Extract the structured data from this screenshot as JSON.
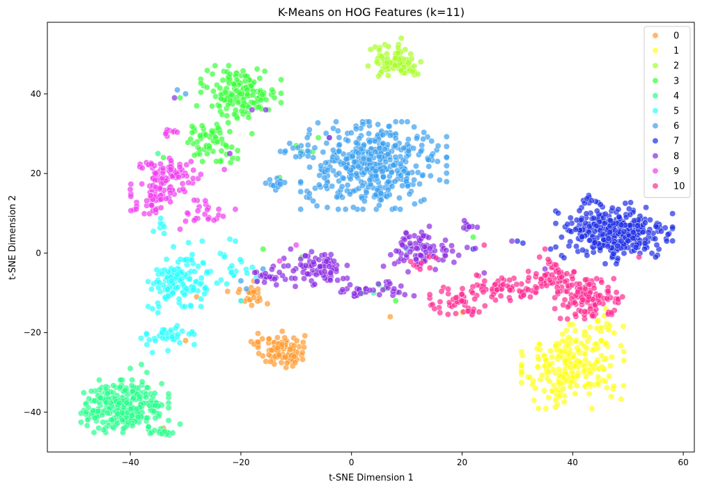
{
  "chart_data": {
    "type": "scatter",
    "title": "K-Means on HOG Features (k=11)",
    "xlabel": "t-SNE Dimension 1",
    "ylabel": "t-SNE Dimension 2",
    "xlim": [
      -55,
      62
    ],
    "ylim": [
      -50,
      58
    ],
    "xticks": [
      -40,
      -20,
      0,
      20,
      40,
      60
    ],
    "yticks": [
      -40,
      -20,
      0,
      20,
      40
    ],
    "grid": false,
    "legend": {
      "placement": "top-right"
    },
    "point_opacity": 0.7,
    "series": [
      {
        "name": "0",
        "color": "#ff9a2e",
        "clusters": [
          {
            "cx": -12.5,
            "cy": -24.5,
            "sx": 2.0,
            "sy": 2.2,
            "n": 90
          },
          {
            "cx": -18.5,
            "cy": -10.0,
            "sx": 1.8,
            "sy": 1.5,
            "n": 25
          },
          {
            "cx": -17.0,
            "cy": -22.5,
            "sx": 1.0,
            "sy": 0.6,
            "n": 6
          }
        ],
        "points": [
          [
            -28,
            -11
          ],
          [
            -30,
            -22
          ],
          [
            -34,
            -44
          ],
          [
            7,
            -16
          ]
        ]
      },
      {
        "name": "1",
        "color": "#ffff1a",
        "clusters": [
          {
            "cx": 40.0,
            "cy": -28.5,
            "sx": 4.2,
            "sy": 4.8,
            "n": 230
          },
          {
            "cx": 44.5,
            "cy": -19.0,
            "sx": 2.5,
            "sy": 1.8,
            "n": 20
          }
        ],
        "points": [
          [
            20,
            -15
          ],
          [
            33,
            -37
          ],
          [
            46,
            -14
          ]
        ]
      },
      {
        "name": "2",
        "color": "#a6ff24",
        "clusters": [
          {
            "cx": 8.5,
            "cy": 48.0,
            "sx": 2.3,
            "sy": 2.0,
            "n": 80
          }
        ],
        "points": [
          [
            9,
            54
          ],
          [
            3,
            47
          ],
          [
            12,
            45
          ],
          [
            5,
            51
          ]
        ]
      },
      {
        "name": "3",
        "color": "#38ff38",
        "clusters": [
          {
            "cx": -20.0,
            "cy": 40.5,
            "sx": 3.3,
            "sy": 3.0,
            "n": 150
          },
          {
            "cx": -25.5,
            "cy": 27.5,
            "sx": 2.3,
            "sy": 2.4,
            "n": 60
          }
        ],
        "points": [
          [
            -28,
            37
          ],
          [
            -27,
            32
          ],
          [
            -18,
            30
          ],
          [
            -15,
            36
          ],
          [
            -31,
            39
          ],
          [
            -22,
            45
          ],
          [
            -9,
            25.5
          ],
          [
            -7,
            25.5
          ],
          [
            -6,
            29
          ],
          [
            -10,
            27
          ],
          [
            -13,
            19
          ],
          [
            -16,
            1
          ],
          [
            6,
            -9
          ],
          [
            8,
            -12
          ],
          [
            22,
            4
          ],
          [
            -9,
            -1
          ],
          [
            -34,
            24
          ]
        ]
      },
      {
        "name": "4",
        "color": "#26ff8a",
        "clusters": [
          {
            "cx": -41.0,
            "cy": -38.5,
            "sx": 3.6,
            "sy": 3.0,
            "n": 300
          },
          {
            "cx": -34.0,
            "cy": -45.0,
            "sx": 1.2,
            "sy": 0.5,
            "n": 15
          }
        ],
        "points": [
          [
            -48,
            -40
          ],
          [
            -31,
            -43
          ],
          [
            -40,
            -29
          ],
          [
            -38,
            -28
          ],
          [
            -37,
            -30
          ],
          [
            4,
            -10
          ],
          [
            5,
            -8
          ],
          [
            2,
            -10
          ],
          [
            -35,
            25
          ]
        ]
      },
      {
        "name": "5",
        "color": "#26ffff",
        "clusters": [
          {
            "cx": -31.5,
            "cy": -7.5,
            "sx": 2.4,
            "sy": 2.7,
            "n": 120
          },
          {
            "cx": -33.0,
            "cy": -21.0,
            "sx": 2.3,
            "sy": 1.6,
            "n": 35
          },
          {
            "cx": -24.5,
            "cy": -3.5,
            "sx": 3.5,
            "sy": 3.0,
            "n": 30
          },
          {
            "cx": -34.5,
            "cy": 7.5,
            "sx": 0.6,
            "sy": 1.2,
            "n": 7
          }
        ],
        "points": [
          [
            -21,
            3
          ],
          [
            -22,
            3.5
          ],
          [
            -27,
            3
          ],
          [
            -36,
            -25
          ],
          [
            -37,
            -23
          ],
          [
            -35,
            -15
          ],
          [
            -36,
            -14
          ],
          [
            -20,
            -12
          ],
          [
            -23,
            -1
          ]
        ]
      },
      {
        "name": "6",
        "color": "#3aa0f0",
        "clusters": [
          {
            "cx": 4.0,
            "cy": 22.0,
            "sx": 6.0,
            "sy": 5.0,
            "n": 420
          },
          {
            "cx": -13.5,
            "cy": 17.5,
            "sx": 1.0,
            "sy": 0.8,
            "n": 14
          },
          {
            "cx": -10.0,
            "cy": 26.0,
            "sx": 1.3,
            "sy": 1.0,
            "n": 10
          }
        ],
        "points": [
          [
            -8,
            29
          ],
          [
            -4,
            29
          ],
          [
            5,
            12
          ],
          [
            -17,
            -7
          ],
          [
            -19,
            -9
          ],
          [
            -20,
            -7
          ],
          [
            -16,
            -4
          ],
          [
            -30,
            40
          ],
          [
            -31.5,
            41
          ],
          [
            10,
            1
          ]
        ]
      },
      {
        "name": "7",
        "color": "#1e2de6",
        "clusters": [
          {
            "cx": 47.5,
            "cy": 5.0,
            "sx": 4.8,
            "sy": 3.5,
            "n": 320
          },
          {
            "cx": 43.0,
            "cy": 13.0,
            "sx": 0.8,
            "sy": 0.7,
            "n": 8
          }
        ],
        "points": [
          [
            55,
            -1
          ],
          [
            53,
            1
          ],
          [
            57,
            3
          ],
          [
            36,
            1
          ],
          [
            38,
            4
          ],
          [
            21,
            7
          ],
          [
            30,
            3
          ],
          [
            22,
            1
          ],
          [
            31,
            2.5
          ]
        ]
      },
      {
        "name": "8",
        "color": "#8a2be2",
        "clusters": [
          {
            "cx": -6.5,
            "cy": -4.0,
            "sx": 2.6,
            "sy": 2.0,
            "n": 80
          },
          {
            "cx": 11.5,
            "cy": 1.0,
            "sx": 2.6,
            "sy": 2.6,
            "n": 70
          },
          {
            "cx": 7.0,
            "cy": -9.0,
            "sx": 2.0,
            "sy": 0.8,
            "n": 20
          },
          {
            "cx": -15.5,
            "cy": -6.0,
            "sx": 1.5,
            "sy": 1.3,
            "n": 20
          },
          {
            "cx": 18.5,
            "cy": 0.5,
            "sx": 2.2,
            "sy": 1.5,
            "n": 15
          },
          {
            "cx": 0.0,
            "cy": -9.5,
            "sx": 1.5,
            "sy": 0.8,
            "n": 15
          },
          {
            "cx": 21.0,
            "cy": 7.0,
            "sx": 0.8,
            "sy": 0.8,
            "n": 8
          }
        ],
        "points": [
          [
            -18,
            36
          ],
          [
            -15.5,
            36
          ],
          [
            -22,
            25
          ],
          [
            -32,
            39
          ],
          [
            -11,
            1
          ],
          [
            29,
            3
          ],
          [
            35,
            -4
          ],
          [
            24,
            -5
          ],
          [
            -4,
            29
          ]
        ]
      },
      {
        "name": "9",
        "color": "#f03cf0",
        "clusters": [
          {
            "cx": -35.5,
            "cy": 14.5,
            "sx": 2.0,
            "sy": 3.0,
            "n": 70
          },
          {
            "cx": -31.0,
            "cy": 19.5,
            "sx": 2.0,
            "sy": 2.0,
            "n": 45
          },
          {
            "cx": -36.0,
            "cy": 22.0,
            "sx": 1.5,
            "sy": 0.6,
            "n": 12
          },
          {
            "cx": -26.5,
            "cy": 10.0,
            "sx": 1.5,
            "sy": 1.5,
            "n": 20
          },
          {
            "cx": -32.5,
            "cy": 30.5,
            "sx": 1.0,
            "sy": 0.6,
            "n": 8
          }
        ],
        "points": [
          [
            -40,
            16
          ],
          [
            -24,
            11
          ],
          [
            -23,
            21
          ],
          [
            -29,
            23
          ],
          [
            -31,
            6
          ],
          [
            -30,
            8
          ],
          [
            -10,
            2
          ],
          [
            -13,
            -2
          ],
          [
            -21,
            11
          ]
        ]
      },
      {
        "name": "10",
        "color": "#ff2a92",
        "clusters": [
          {
            "cx": 42.5,
            "cy": -11.5,
            "sx": 2.6,
            "sy": 2.3,
            "n": 110
          },
          {
            "cx": 37.0,
            "cy": -6.0,
            "sx": 2.4,
            "sy": 2.0,
            "n": 60
          },
          {
            "cx": 27.0,
            "cy": -8.5,
            "sx": 2.3,
            "sy": 1.5,
            "n": 45
          },
          {
            "cx": 19.0,
            "cy": -11.5,
            "sx": 2.2,
            "sy": 1.8,
            "n": 35
          },
          {
            "cx": 21.5,
            "cy": -14.5,
            "sx": 1.2,
            "sy": 0.6,
            "n": 10
          },
          {
            "cx": 32.0,
            "cy": -10.0,
            "sx": 1.5,
            "sy": 1.2,
            "n": 15
          },
          {
            "cx": 13.0,
            "cy": -3.0,
            "sx": 1.2,
            "sy": 1.0,
            "n": 8
          }
        ],
        "points": [
          [
            49,
            -11
          ],
          [
            52,
            -1
          ],
          [
            47,
            -15
          ],
          [
            34,
            -1
          ],
          [
            35,
            1
          ],
          [
            24,
            2
          ],
          [
            16,
            -15
          ],
          [
            15,
            -14
          ],
          [
            37,
            -3
          ]
        ]
      }
    ]
  }
}
